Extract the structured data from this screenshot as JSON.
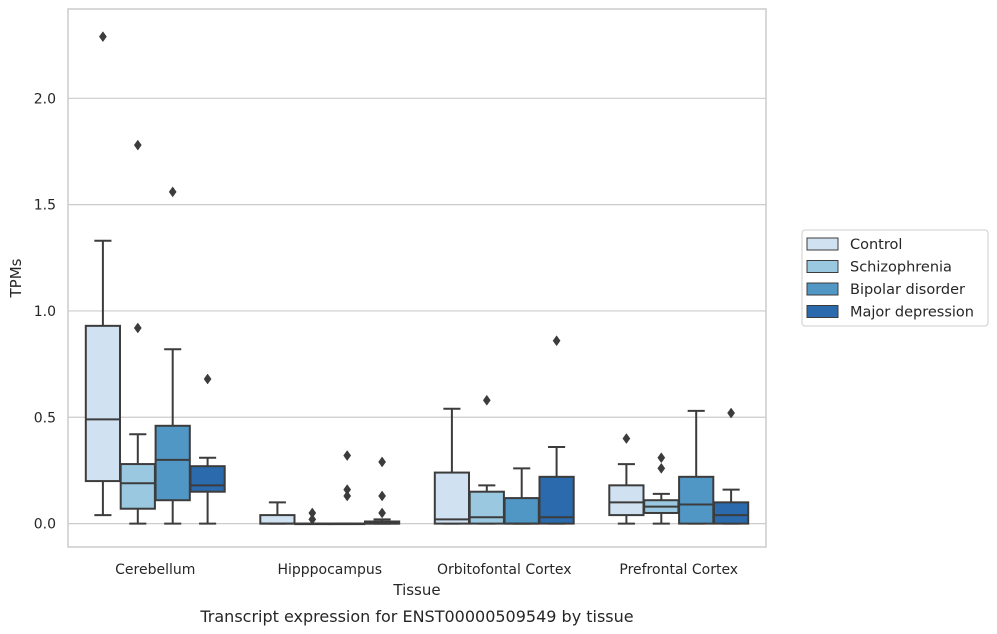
{
  "chart_data": {
    "type": "box",
    "title": "",
    "caption": "Transcript expression for ENST00000509549 by tissue",
    "xlabel": "Tissue",
    "ylabel": "TPMs",
    "ylim": [
      -0.11,
      2.42
    ],
    "yticks": [
      0.0,
      0.5,
      1.0,
      1.5,
      2.0
    ],
    "ytick_labels": [
      "0.0",
      "0.5",
      "1.0",
      "1.5",
      "2.0"
    ],
    "grid": "horizontal",
    "legend_position": "right",
    "categories": [
      "Cerebellum",
      "Hipppocampus",
      "Orbitofontal Cortex",
      "Prefrontal Cortex"
    ],
    "series": [
      {
        "name": "Control",
        "color": "#d0e1f1",
        "boxes": [
          {
            "min": 0.04,
            "q1": 0.2,
            "median": 0.49,
            "q3": 0.93,
            "max": 1.33,
            "outliers": [
              2.29
            ]
          },
          {
            "min": 0.0,
            "q1": 0.0,
            "median": 0.0,
            "q3": 0.04,
            "max": 0.1,
            "outliers": []
          },
          {
            "min": 0.0,
            "q1": 0.0,
            "median": 0.02,
            "q3": 0.24,
            "max": 0.54,
            "outliers": []
          },
          {
            "min": 0.0,
            "q1": 0.04,
            "median": 0.1,
            "q3": 0.18,
            "max": 0.28,
            "outliers": [
              0.4
            ]
          }
        ]
      },
      {
        "name": "Schizophrenia",
        "color": "#9ac8e0",
        "boxes": [
          {
            "min": 0.0,
            "q1": 0.07,
            "median": 0.19,
            "q3": 0.28,
            "max": 0.42,
            "outliers": [
              0.92,
              1.78
            ]
          },
          {
            "min": 0.0,
            "q1": 0.0,
            "median": 0.0,
            "q3": 0.0,
            "max": 0.0,
            "outliers": [
              0.02,
              0.05
            ]
          },
          {
            "min": 0.0,
            "q1": 0.0,
            "median": 0.03,
            "q3": 0.15,
            "max": 0.18,
            "outliers": [
              0.58
            ]
          },
          {
            "min": 0.0,
            "q1": 0.05,
            "median": 0.08,
            "q3": 0.11,
            "max": 0.14,
            "outliers": [
              0.26,
              0.31
            ]
          }
        ]
      },
      {
        "name": "Bipolar disorder",
        "color": "#5097c6",
        "boxes": [
          {
            "min": 0.0,
            "q1": 0.11,
            "median": 0.3,
            "q3": 0.46,
            "max": 0.82,
            "outliers": [
              1.56
            ]
          },
          {
            "min": 0.0,
            "q1": 0.0,
            "median": 0.0,
            "q3": 0.0,
            "max": 0.0,
            "outliers": [
              0.13,
              0.16,
              0.32
            ]
          },
          {
            "min": 0.0,
            "q1": 0.0,
            "median": 0.0,
            "q3": 0.12,
            "max": 0.26,
            "outliers": []
          },
          {
            "min": 0.0,
            "q1": 0.0,
            "median": 0.09,
            "q3": 0.22,
            "max": 0.53,
            "outliers": []
          }
        ]
      },
      {
        "name": "Major depression",
        "color": "#2a6aad",
        "boxes": [
          {
            "min": 0.0,
            "q1": 0.15,
            "median": 0.18,
            "q3": 0.27,
            "max": 0.31,
            "outliers": [
              0.68
            ]
          },
          {
            "min": 0.0,
            "q1": 0.0,
            "median": 0.0,
            "q3": 0.01,
            "max": 0.02,
            "outliers": [
              0.05,
              0.13,
              0.29
            ]
          },
          {
            "min": 0.0,
            "q1": 0.0,
            "median": 0.03,
            "q3": 0.22,
            "max": 0.36,
            "outliers": [
              0.86
            ]
          },
          {
            "min": 0.0,
            "q1": 0.0,
            "median": 0.04,
            "q3": 0.1,
            "max": 0.16,
            "outliers": [
              0.52
            ]
          }
        ]
      }
    ]
  }
}
